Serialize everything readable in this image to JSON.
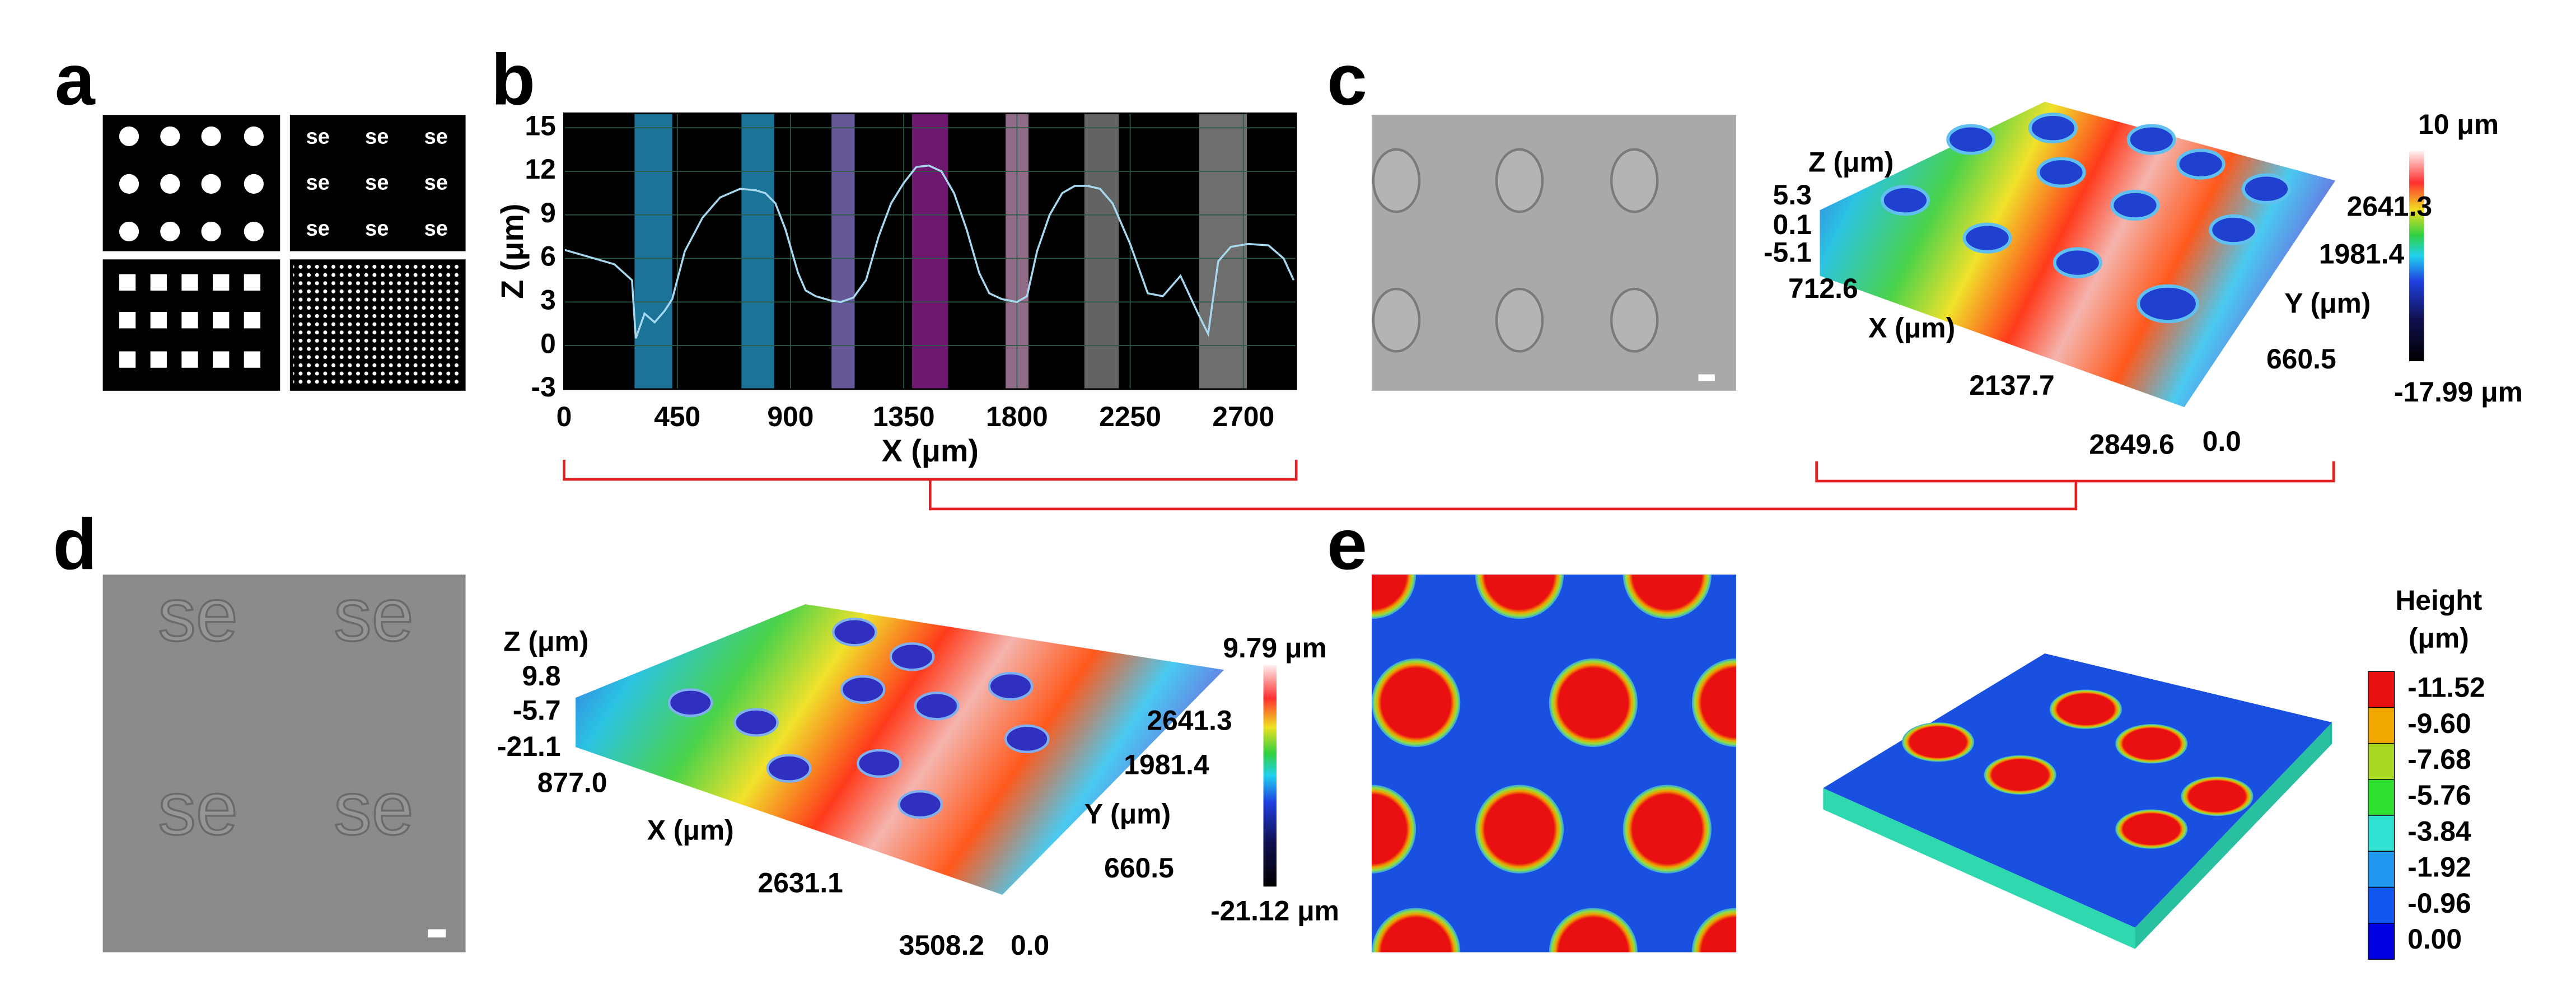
{
  "panels": {
    "a": {
      "label": "a",
      "tile_text": "se"
    },
    "b": {
      "label": "b",
      "chart": {
        "type": "line",
        "x_label": "X (μm)",
        "y_label": "Z (μm)",
        "xlim": [
          0,
          2910
        ],
        "xticks": [
          0,
          450,
          900,
          1350,
          1800,
          2250,
          2700
        ],
        "ylim": [
          -3,
          16
        ],
        "yticks": [
          -3,
          0,
          3,
          6,
          9,
          12,
          15
        ],
        "grid": true,
        "bands": [
          {
            "start": 280,
            "end": 430,
            "color": "#1e7fa8"
          },
          {
            "start": 705,
            "end": 835,
            "color": "#1e7fa8"
          },
          {
            "start": 1063,
            "end": 1155,
            "color": "#7060a8"
          },
          {
            "start": 1383,
            "end": 1526,
            "color": "#7a1a7a"
          },
          {
            "start": 1755,
            "end": 1846,
            "color": "#a07898"
          },
          {
            "start": 2068,
            "end": 2205,
            "color": "#6e6e6e"
          },
          {
            "start": 2524,
            "end": 2714,
            "color": "#7a7a7a"
          }
        ],
        "x": [
          0,
          100,
          200,
          270,
          285,
          320,
          360,
          400,
          430,
          480,
          550,
          620,
          700,
          760,
          800,
          840,
          880,
          930,
          960,
          1000,
          1060,
          1100,
          1150,
          1200,
          1250,
          1300,
          1350,
          1400,
          1450,
          1500,
          1550,
          1600,
          1650,
          1690,
          1740,
          1800,
          1840,
          1880,
          1930,
          1980,
          2030,
          2080,
          2130,
          2180,
          2250,
          2320,
          2380,
          2450,
          2520,
          2560,
          2600,
          2650,
          2720,
          2800,
          2860,
          2900
        ],
        "series": [
          {
            "color": "#a8d8f0",
            "values": [
              6.6,
              6.1,
              5.6,
              4.5,
              0.5,
              2.2,
              1.6,
              2.4,
              3.2,
              6.5,
              8.8,
              10.2,
              10.8,
              10.7,
              10.5,
              9.8,
              8.0,
              5.0,
              3.8,
              3.4,
              3.1,
              3.0,
              3.3,
              4.5,
              7.5,
              9.8,
              11.2,
              12.3,
              12.4,
              12.0,
              10.5,
              8.0,
              5.0,
              3.6,
              3.2,
              3.0,
              3.4,
              6.5,
              9.0,
              10.5,
              11.0,
              11.0,
              10.8,
              9.8,
              7.0,
              3.6,
              3.4,
              4.8,
              2.2,
              0.8,
              5.8,
              6.8,
              7.0,
              6.9,
              6.0,
              4.5
            ]
          }
        ]
      }
    },
    "c": {
      "label": "c",
      "z_label": "Z (μm)",
      "z_ticks": [
        "5.3",
        "0.1",
        "-5.1"
      ],
      "x_label": "X (μm)",
      "x_ticks": [
        "712.6",
        "2137.7",
        "2849.6"
      ],
      "y_label": "Y (μm)",
      "y_ticks": [
        "2641.3",
        "1981.4",
        "660.5",
        "0.0"
      ],
      "colorbar_max": "10 μm",
      "colorbar_min": "-17.99 μm"
    },
    "d": {
      "label": "d",
      "pattern_text": "se",
      "z_label": "Z (μm)",
      "z_ticks": [
        "9.8",
        "-5.7",
        "-21.1"
      ],
      "x_label": "X (μm)",
      "x_ticks": [
        "877.0",
        "2631.1",
        "3508.2"
      ],
      "y_label": "Y (μm)",
      "y_ticks": [
        "2641.3",
        "1981.4",
        "660.5",
        "0.0"
      ],
      "colorbar_max": "9.79 μm",
      "colorbar_min": "-21.12 μm"
    },
    "e": {
      "label": "e",
      "legend_title": [
        "Height",
        "(μm)"
      ],
      "legend": [
        {
          "label": "-11.52",
          "color": "#e81010"
        },
        {
          "label": "-9.60",
          "color": "#f0a800"
        },
        {
          "label": "-7.68",
          "color": "#a8d820"
        },
        {
          "label": "-5.76",
          "color": "#30e030"
        },
        {
          "label": "-3.84",
          "color": "#30e0d0"
        },
        {
          "label": "-1.92",
          "color": "#2098f0"
        },
        {
          "label": "-0.96",
          "color": "#1058f0"
        },
        {
          "label": "0.00",
          "color": "#0000e0"
        }
      ]
    }
  }
}
